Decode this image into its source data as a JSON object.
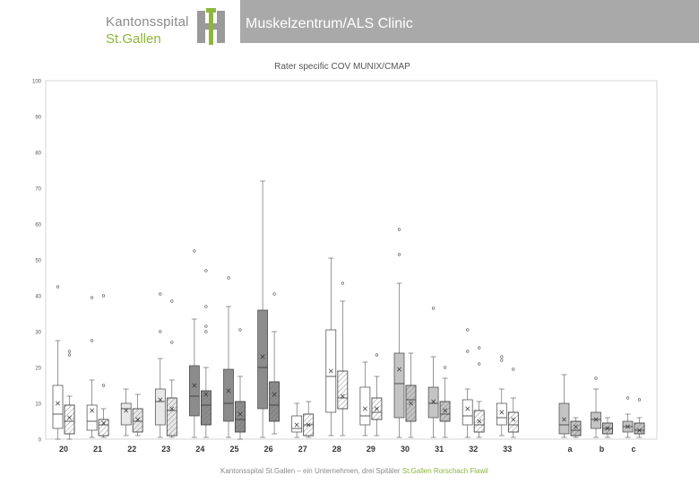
{
  "header": {
    "title": "Muskelzentrum/ALS Clinic"
  },
  "logo": {
    "name": "Kantonsspital",
    "city": "St.Gallen"
  },
  "footer": {
    "text": "Kantonsspital St.Gallen – ein Unternehmen, drei Spitäler",
    "sites": "St.Gallen  Rorschach  Flawil"
  },
  "colors": {
    "header_band": "#a9a9a9",
    "brand_green": "#8db63c",
    "brand_gray": "#8a8a8a",
    "box_dark": "#8c8c8c",
    "box_medium": "#c4c4c4",
    "box_light": "#e8e8e8",
    "box_white": "#ffffff"
  },
  "chart_data": {
    "type": "box",
    "title": "Rater specific COV MUNIX/CMAP",
    "xlabel": "",
    "ylabel": "",
    "ylim": [
      0,
      100
    ],
    "yticks": [
      0,
      10,
      20,
      30,
      40,
      50,
      60,
      70,
      80,
      90,
      100
    ],
    "grid": false,
    "series": [
      {
        "pattern": "solid"
      },
      {
        "pattern": "hatched"
      }
    ],
    "groups": [
      {
        "label": "20",
        "fill": "#ffffff",
        "boxes": [
          {
            "min": 0,
            "q1": 3,
            "median": 7,
            "q3": 15,
            "max": 27.5,
            "mean": 10,
            "outliers": [
              42.5
            ]
          },
          {
            "min": 0,
            "q1": 1.5,
            "median": 5,
            "q3": 9.5,
            "max": 12,
            "mean": 6,
            "outliers": [
              23.5,
              24.5
            ]
          }
        ]
      },
      {
        "label": "21",
        "fill": "#ffffff",
        "boxes": [
          {
            "min": 0.5,
            "q1": 2.5,
            "median": 5,
            "q3": 9.5,
            "max": 16.5,
            "mean": 8,
            "outliers": [
              27.5,
              39.5
            ]
          },
          {
            "min": 0.5,
            "q1": 1,
            "median": 4,
            "q3": 5.5,
            "max": 8.5,
            "mean": 4.5,
            "outliers": [
              15,
              40
            ]
          }
        ]
      },
      {
        "label": "22",
        "fill": "#e8e8e8",
        "boxes": [
          {
            "min": 1,
            "q1": 4,
            "median": 8.5,
            "q3": 10,
            "max": 14,
            "mean": 8,
            "outliers": []
          },
          {
            "min": 1,
            "q1": 2,
            "median": 5,
            "q3": 8.5,
            "max": 12.5,
            "mean": 5.5,
            "outliers": []
          }
        ]
      },
      {
        "label": "23",
        "fill": "#e8e8e8",
        "boxes": [
          {
            "min": 0.5,
            "q1": 4,
            "median": 10.5,
            "q3": 14,
            "max": 22.5,
            "mean": 11,
            "outliers": [
              30,
              40.5
            ]
          },
          {
            "min": 0.5,
            "q1": 1,
            "median": 8,
            "q3": 11.5,
            "max": 16.5,
            "mean": 8.5,
            "outliers": [
              27,
              38.5
            ]
          }
        ]
      },
      {
        "label": "24",
        "fill": "#8c8c8c",
        "boxes": [
          {
            "min": 0.5,
            "q1": 6.5,
            "median": 12,
            "q3": 20.5,
            "max": 33.5,
            "mean": 15,
            "outliers": [
              52.5
            ]
          },
          {
            "min": 0.5,
            "q1": 4,
            "median": 9.5,
            "q3": 13.5,
            "max": 20,
            "mean": 12.5,
            "outliers": [
              30,
              31.5,
              37,
              47
            ]
          }
        ]
      },
      {
        "label": "25",
        "fill": "#8c8c8c",
        "boxes": [
          {
            "min": 0.5,
            "q1": 5,
            "median": 10,
            "q3": 19.5,
            "max": 37,
            "mean": 13.5,
            "outliers": [
              45
            ]
          },
          {
            "min": 0,
            "q1": 2,
            "median": 5.5,
            "q3": 10.5,
            "max": 17.5,
            "mean": 7,
            "outliers": [
              30.5
            ]
          }
        ]
      },
      {
        "label": "26",
        "fill": "#8c8c8c",
        "boxes": [
          {
            "min": 0.5,
            "q1": 8.5,
            "median": 20,
            "q3": 36,
            "max": 72,
            "mean": 23,
            "outliers": []
          },
          {
            "min": 1.5,
            "q1": 5,
            "median": 9.5,
            "q3": 16,
            "max": 30,
            "mean": 12.5,
            "outliers": [
              40.5
            ]
          }
        ]
      },
      {
        "label": "27",
        "fill": "#ffffff",
        "boxes": [
          {
            "min": 0.5,
            "q1": 2,
            "median": 3,
            "q3": 6.5,
            "max": 10,
            "mean": 4,
            "outliers": []
          },
          {
            "min": 0.5,
            "q1": 1,
            "median": 4,
            "q3": 7,
            "max": 10.5,
            "mean": 4,
            "outliers": []
          }
        ]
      },
      {
        "label": "28",
        "fill": "#ffffff",
        "boxes": [
          {
            "min": 1,
            "q1": 7.5,
            "median": 17.5,
            "q3": 30.5,
            "max": 50.5,
            "mean": 19,
            "outliers": []
          },
          {
            "min": 1,
            "q1": 8.5,
            "median": 11.5,
            "q3": 19,
            "max": 38.5,
            "mean": 12,
            "outliers": [
              43.5
            ]
          }
        ]
      },
      {
        "label": "29",
        "fill": "#ffffff",
        "boxes": [
          {
            "min": 1,
            "q1": 4,
            "median": 6.5,
            "q3": 14.5,
            "max": 21.5,
            "mean": 8.5,
            "outliers": []
          },
          {
            "min": 1,
            "q1": 5.5,
            "median": 7.5,
            "q3": 11.5,
            "max": 17.5,
            "mean": 8.5,
            "outliers": [
              23.5
            ]
          }
        ]
      },
      {
        "label": "30",
        "fill": "#c4c4c4",
        "boxes": [
          {
            "min": 0.5,
            "q1": 6,
            "median": 15.5,
            "q3": 24,
            "max": 43.5,
            "mean": 19.5,
            "outliers": [
              51.5,
              58.5
            ]
          },
          {
            "min": 0.5,
            "q1": 5,
            "median": 11,
            "q3": 15,
            "max": 24,
            "mean": 10,
            "outliers": []
          }
        ]
      },
      {
        "label": "31",
        "fill": "#c4c4c4",
        "boxes": [
          {
            "min": 0.5,
            "q1": 6,
            "median": 10,
            "q3": 14.5,
            "max": 23,
            "mean": 10.5,
            "outliers": [
              36.5
            ]
          },
          {
            "min": 0.5,
            "q1": 5,
            "median": 7,
            "q3": 10.5,
            "max": 17,
            "mean": 8,
            "outliers": [
              20
            ]
          }
        ]
      },
      {
        "label": "32",
        "fill": "#ffffff",
        "boxes": [
          {
            "min": 0.5,
            "q1": 4,
            "median": 6.5,
            "q3": 11,
            "max": 14,
            "mean": 8.5,
            "outliers": [
              24.5,
              30.5
            ]
          },
          {
            "min": 0.5,
            "q1": 2,
            "median": 4,
            "q3": 8,
            "max": 10.5,
            "mean": 5,
            "outliers": [
              21,
              25.5
            ]
          }
        ]
      },
      {
        "label": "33",
        "fill": "#ffffff",
        "boxes": [
          {
            "min": 1,
            "q1": 4,
            "median": 6,
            "q3": 10,
            "max": 14,
            "mean": 7.5,
            "outliers": [
              22,
              23
            ]
          },
          {
            "min": 0.5,
            "q1": 2,
            "median": 4,
            "q3": 7.5,
            "max": 11.5,
            "mean": 5.5,
            "outliers": [
              19.5
            ]
          }
        ]
      },
      {
        "label": "a",
        "fill": "#c4c4c4",
        "boxes": [
          {
            "min": 0.5,
            "q1": 1.5,
            "median": 4,
            "q3": 10,
            "max": 18,
            "mean": 5.5,
            "outliers": []
          },
          {
            "min": 0.5,
            "q1": 1,
            "median": 2.5,
            "q3": 5,
            "max": 6,
            "mean": 3.5,
            "outliers": []
          }
        ]
      },
      {
        "label": "b",
        "fill": "#c4c4c4",
        "boxes": [
          {
            "min": 0.5,
            "q1": 3,
            "median": 5.5,
            "q3": 7.5,
            "max": 14,
            "mean": 5.5,
            "outliers": [
              17
            ]
          },
          {
            "min": 0.5,
            "q1": 1.5,
            "median": 3,
            "q3": 4.5,
            "max": 6,
            "mean": 3,
            "outliers": []
          }
        ]
      },
      {
        "label": "c",
        "fill": "#c4c4c4",
        "boxes": [
          {
            "min": 0.5,
            "q1": 2,
            "median": 3.5,
            "q3": 5,
            "max": 7,
            "mean": 3.5,
            "outliers": [
              11.5
            ]
          },
          {
            "min": 0.5,
            "q1": 1.5,
            "median": 2.5,
            "q3": 4.5,
            "max": 6,
            "mean": 2.5,
            "outliers": [
              11
            ]
          }
        ]
      }
    ]
  }
}
